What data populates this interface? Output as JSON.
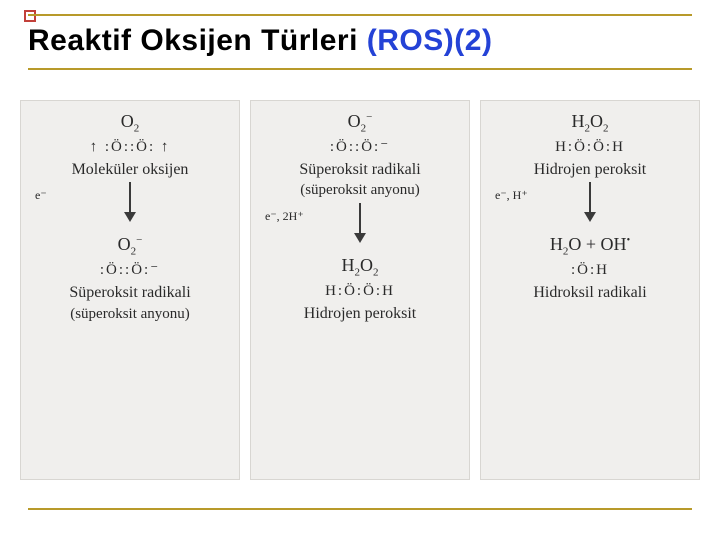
{
  "title": {
    "part1": "Reaktif Oksijen Türleri ",
    "part2": "(ROS)(2)",
    "color1": "#000000",
    "color2": "#2442d6",
    "rule_color": "#b89a2a",
    "square_color": "#c2403a"
  },
  "panels": [
    {
      "top_formula_html": "O<span class='sub'>2</span>",
      "top_lewis": "↑ :Ö::Ö: ↑",
      "top_label": "Moleküler oksijen",
      "arrow_note": "e⁻",
      "mid_formula_html": "O<span class='sub'>2</span><span class='sup'>−</span>",
      "mid_lewis": ":Ö::Ö:⁻",
      "bottom_label": "Süperoksit radikali",
      "bottom_sub": "(süperoksit anyonu)"
    },
    {
      "top_formula_html": "O<span class='sub'>2</span><span class='sup'>−</span>",
      "top_lewis": ":Ö::Ö:⁻",
      "top_label": "Süperoksit radikali",
      "top_sub": "(süperoksit anyonu)",
      "arrow_note": "e⁻, 2H⁺",
      "mid_formula_html": "H<span class='sub'>2</span>O<span class='sub'>2</span>",
      "mid_lewis": "H:Ö:Ö:H",
      "bottom_label": "Hidrojen peroksit",
      "bottom_sub": ""
    },
    {
      "top_formula_html": "H<span class='sub'>2</span>O<span class='sub'>2</span>",
      "top_lewis": "H:Ö:Ö:H",
      "top_label": "Hidrojen peroksit",
      "top_sub": "",
      "arrow_note": "e⁻, H⁺",
      "mid_formula_html": "H<span class='sub'>2</span>O + OH<span class='radical-dot'>•</span>",
      "mid_lewis": ":Ö:H",
      "bottom_label": "Hidroksil radikali",
      "bottom_sub": ""
    }
  ],
  "style": {
    "panel_bg": "#f0efed",
    "panel_border": "#d8d6d2",
    "arrow_color": "#3a3a3a",
    "text_color": "#2a2a2a"
  }
}
